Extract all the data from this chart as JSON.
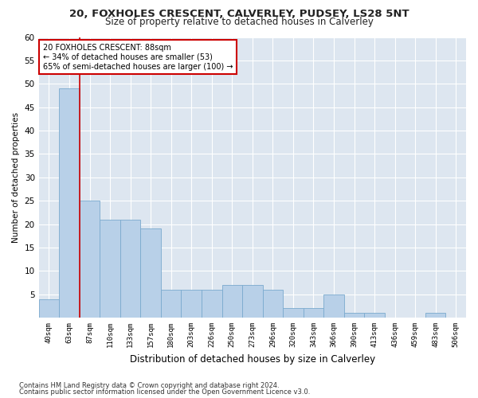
{
  "title1": "20, FOXHOLES CRESCENT, CALVERLEY, PUDSEY, LS28 5NT",
  "title2": "Size of property relative to detached houses in Calverley",
  "xlabel": "Distribution of detached houses by size in Calverley",
  "ylabel": "Number of detached properties",
  "bin_labels": [
    "40sqm",
    "63sqm",
    "87sqm",
    "110sqm",
    "133sqm",
    "157sqm",
    "180sqm",
    "203sqm",
    "226sqm",
    "250sqm",
    "273sqm",
    "296sqm",
    "320sqm",
    "343sqm",
    "366sqm",
    "390sqm",
    "413sqm",
    "436sqm",
    "459sqm",
    "483sqm",
    "506sqm"
  ],
  "values": [
    4,
    49,
    25,
    21,
    21,
    19,
    6,
    6,
    6,
    7,
    7,
    6,
    2,
    2,
    5,
    1,
    1,
    0,
    0,
    1,
    0
  ],
  "bar_color": "#b8d0e8",
  "bar_edge_color": "#7aaace",
  "highlight_line_index": 2,
  "highlight_line_color": "#cc0000",
  "annotation_text": "20 FOXHOLES CRESCENT: 88sqm\n← 34% of detached houses are smaller (53)\n65% of semi-detached houses are larger (100) →",
  "annotation_box_color": "#ffffff",
  "annotation_box_edge": "#cc0000",
  "ylim": [
    0,
    60
  ],
  "yticks": [
    0,
    5,
    10,
    15,
    20,
    25,
    30,
    35,
    40,
    45,
    50,
    55,
    60
  ],
  "background_color": "#dde6f0",
  "plot_bg_color": "#dde6f0",
  "fig_bg_color": "#ffffff",
  "grid_color": "#ffffff",
  "footer1": "Contains HM Land Registry data © Crown copyright and database right 2024.",
  "footer2": "Contains public sector information licensed under the Open Government Licence v3.0."
}
